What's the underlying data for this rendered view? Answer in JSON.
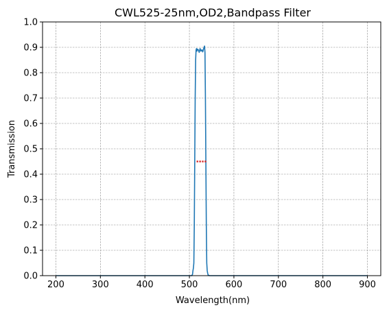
{
  "chart_data": {
    "type": "line",
    "title": "CWL525-25nm,OD2,Bandpass Filter",
    "xlabel": "Wavelength(nm)",
    "ylabel": "Transmission",
    "xlim": [
      170,
      930
    ],
    "ylim": [
      0,
      1.0
    ],
    "x_ticks": [
      200,
      300,
      400,
      500,
      600,
      700,
      800,
      900
    ],
    "y_ticks": [
      "0.0",
      "0.1",
      "0.2",
      "0.3",
      "0.4",
      "0.5",
      "0.6",
      "0.7",
      "0.8",
      "0.9",
      "1.0"
    ],
    "grid": true,
    "series": [
      {
        "color": "#1f77b4",
        "x": [
          200,
          500,
          505,
          507,
          508,
          509,
          510,
          511,
          512,
          513,
          514,
          515,
          516,
          517,
          518,
          520,
          522,
          524,
          526,
          528,
          530,
          532,
          534,
          535,
          536,
          537,
          538,
          539,
          540,
          541,
          542,
          545,
          600,
          700,
          800,
          900
        ],
        "y": [
          0.0,
          0.0,
          0.0,
          0.005,
          0.02,
          0.03,
          0.05,
          0.2,
          0.45,
          0.7,
          0.85,
          0.89,
          0.895,
          0.885,
          0.893,
          0.89,
          0.88,
          0.895,
          0.885,
          0.89,
          0.882,
          0.895,
          0.905,
          0.88,
          0.7,
          0.45,
          0.2,
          0.05,
          0.02,
          0.01,
          0.003,
          0.0,
          0.0,
          0.0,
          0.0,
          0.0
        ]
      }
    ],
    "annotation_points": {
      "color": "#d62728",
      "x": [
        518,
        524,
        530,
        536
      ],
      "y": [
        0.45,
        0.45,
        0.45,
        0.45
      ]
    }
  }
}
